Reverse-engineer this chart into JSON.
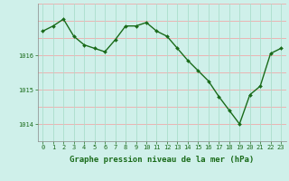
{
  "x": [
    0,
    1,
    2,
    3,
    4,
    5,
    6,
    7,
    8,
    9,
    10,
    11,
    12,
    13,
    14,
    15,
    16,
    17,
    18,
    19,
    20,
    21,
    22,
    23
  ],
  "y": [
    1016.7,
    1016.85,
    1017.05,
    1016.55,
    1016.3,
    1016.2,
    1016.1,
    1016.45,
    1016.85,
    1016.85,
    1016.95,
    1016.7,
    1016.55,
    1016.2,
    1015.85,
    1015.55,
    1015.25,
    1014.8,
    1014.4,
    1014.0,
    1014.85,
    1015.1,
    1016.05,
    1016.2
  ],
  "line_color": "#1a6b1a",
  "marker": "D",
  "marker_size": 2.0,
  "line_width": 1.0,
  "bg_color": "#cff0ea",
  "grid_vcolor": "#aaddcc",
  "grid_hcolor": "#f0aaaa",
  "ylabel_ticks": [
    1014,
    1015,
    1016
  ],
  "ylim": [
    1013.5,
    1017.5
  ],
  "xlim": [
    -0.5,
    23.5
  ],
  "xlabel": "Graphe pression niveau de la mer (hPa)",
  "xlabel_fontsize": 6.5,
  "tick_color": "#1a6b1a",
  "tick_fontsize": 5.0,
  "axis_label_color": "#1a6b1a"
}
